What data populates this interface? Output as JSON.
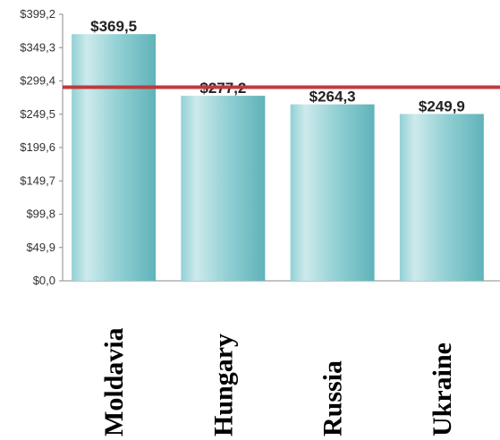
{
  "chart_data": {
    "type": "bar",
    "categories": [
      "Moldavia",
      "Hungary",
      "Russia",
      "Ukraine"
    ],
    "values": [
      369.5,
      277.2,
      264.3,
      249.9
    ],
    "data_labels": [
      "$369,5",
      "$277,2",
      "$264,3",
      "$249,9"
    ],
    "ylim": [
      0,
      399.2
    ],
    "yticks": [
      {
        "value": 0.0,
        "label": "$0,0"
      },
      {
        "value": 49.9,
        "label": "$49,9"
      },
      {
        "value": 99.8,
        "label": "$99,8"
      },
      {
        "value": 149.7,
        "label": "$149,7"
      },
      {
        "value": 199.6,
        "label": "$199,6"
      },
      {
        "value": 249.5,
        "label": "$249,5"
      },
      {
        "value": 299.4,
        "label": "$299,4"
      },
      {
        "value": 349.3,
        "label": "$349,3"
      },
      {
        "value": 399.2,
        "label": "$399,2"
      }
    ],
    "reference_line": {
      "value": 290
    },
    "grid": false,
    "colors": {
      "bar_light": "#cdeaec",
      "bar_mid": "#92d0d4",
      "bar_dark": "#5fb3b9",
      "reference_line": "#c0393b",
      "axis": "#8a8a8a"
    }
  }
}
